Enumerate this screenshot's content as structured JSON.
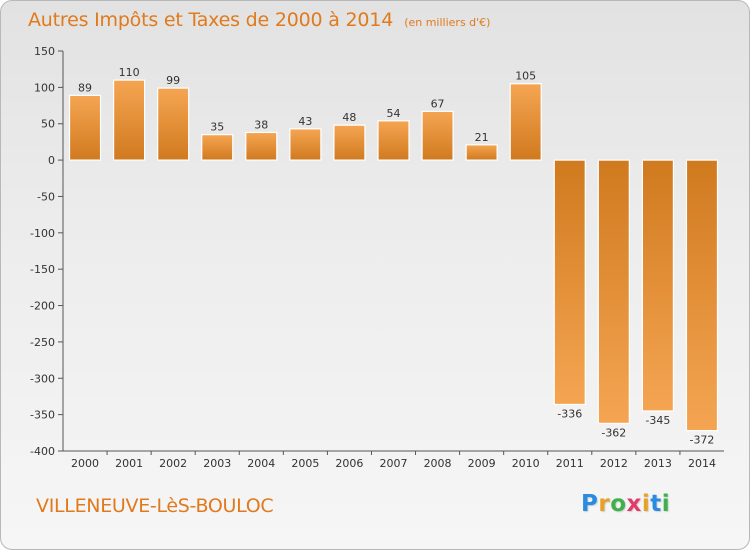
{
  "title": "Autres Impôts et Taxes de 2000 à 2014",
  "unit_note": "(en milliers d'€)",
  "city": "VILLENEUVE-LèS-BOULOC",
  "logo": {
    "letters": [
      "P",
      "r",
      "o",
      "x",
      "i",
      "t",
      "i"
    ],
    "colors": [
      "#2a8be0",
      "#e7a12a",
      "#3fb04a",
      "#e23b6a",
      "#e7a12a",
      "#2a8be0",
      "#3fb04a"
    ]
  },
  "colors": {
    "bar_dark": "#d07a1f",
    "bar_light": "#f5a552",
    "text": "#e07a1c",
    "axis": "#555555",
    "grid": "#cfcfcf"
  },
  "chart_data": {
    "type": "bar",
    "title": "Autres Impôts et Taxes de 2000 à 2014",
    "subtitle": "(en milliers d'€)",
    "xlabel": "",
    "ylabel": "",
    "categories": [
      "2000",
      "2001",
      "2002",
      "2003",
      "2004",
      "2005",
      "2006",
      "2007",
      "2008",
      "2009",
      "2010",
      "2011",
      "2012",
      "2013",
      "2014"
    ],
    "values": [
      89,
      110,
      99,
      35,
      38,
      43,
      48,
      54,
      67,
      21,
      105,
      -336,
      -362,
      -345,
      -372
    ],
    "ylim": [
      -400,
      150
    ],
    "yticks": [
      "150",
      "100",
      "50",
      "0",
      "-50",
      "-100",
      "-150",
      "-200",
      "-250",
      "-300",
      "-350",
      "-400"
    ],
    "grid": false,
    "legend": "none"
  }
}
